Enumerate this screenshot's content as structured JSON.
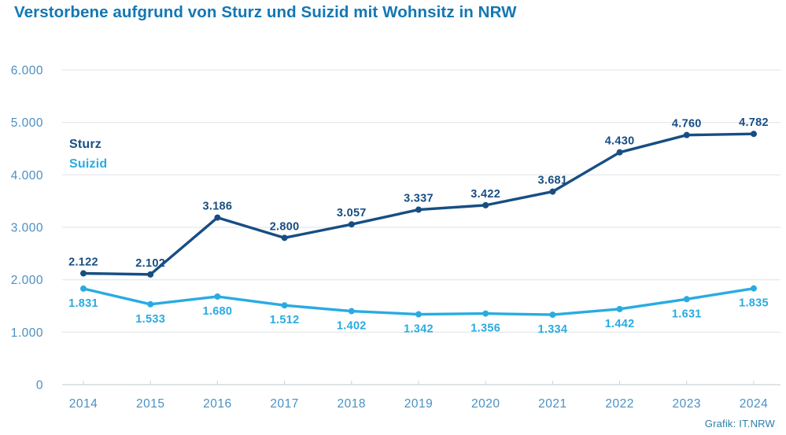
{
  "title": "Verstorbene aufgrund von Sturz und Suizid mit Wohnsitz in NRW",
  "source": "Grafik: IT.NRW",
  "colors": {
    "title": "#1377b4",
    "sturz": "#174e84",
    "suizid": "#29abe2",
    "axis_text": "#4a90c2",
    "gridline": "#e3e6e9",
    "axis_line": "#ccd2d6",
    "source_text": "#2d7ea8",
    "background": "#ffffff"
  },
  "legend": {
    "items": [
      {
        "label": "Sturz",
        "color": "#174e84"
      },
      {
        "label": "Suizid",
        "color": "#29abe2"
      }
    ]
  },
  "chart_data": {
    "type": "line",
    "title": "Verstorbene aufgrund von Sturz und Suizid mit Wohnsitz in NRW",
    "x": [
      2014,
      2015,
      2016,
      2017,
      2018,
      2019,
      2020,
      2021,
      2022,
      2023,
      2024
    ],
    "series": [
      {
        "name": "Sturz",
        "color": "#174e84",
        "values": [
          2122,
          2102,
          3186,
          2800,
          3057,
          3337,
          3422,
          3681,
          4430,
          4760,
          4782
        ],
        "labels": [
          "2.122",
          "2.102",
          "3.186",
          "2.800",
          "3.057",
          "3.337",
          "3.422",
          "3.681",
          "4.430",
          "4.760",
          "4.782"
        ],
        "label_position": "above"
      },
      {
        "name": "Suizid",
        "color": "#29abe2",
        "values": [
          1831,
          1533,
          1680,
          1512,
          1402,
          1342,
          1356,
          1334,
          1442,
          1631,
          1835
        ],
        "labels": [
          "1.831",
          "1.533",
          "1.680",
          "1.512",
          "1.402",
          "1.342",
          "1.356",
          "1.334",
          "1.442",
          "1.631",
          "1.835"
        ],
        "label_position": "below"
      }
    ],
    "xlabel": "",
    "ylabel": "",
    "ylim": [
      0,
      6000
    ],
    "yticks": [
      0,
      1000,
      2000,
      3000,
      4000,
      5000,
      6000
    ],
    "ytick_labels": [
      "0",
      "1.000",
      "2.000",
      "3.000",
      "4.000",
      "5.000",
      "6.000"
    ],
    "grid": true,
    "legend_position": "inside-left"
  }
}
